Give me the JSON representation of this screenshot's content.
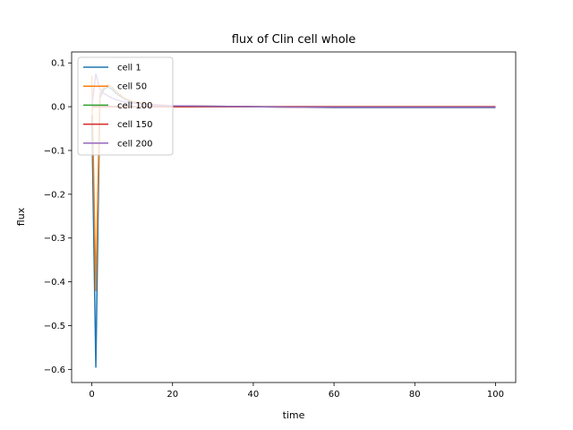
{
  "chart_data": {
    "type": "line",
    "title": "flux of Clin cell whole",
    "xlabel": "time",
    "ylabel": "flux",
    "xlim": [
      -5,
      105
    ],
    "ylim": [
      -0.63,
      0.125
    ],
    "xticks": [
      0,
      20,
      40,
      60,
      80,
      100
    ],
    "yticks": [
      0.1,
      0.0,
      -0.1,
      -0.2,
      -0.3,
      -0.4,
      -0.5,
      -0.6
    ],
    "ytick_labels": [
      "0.1",
      "0.0",
      "−0.1",
      "−0.2",
      "−0.3",
      "−0.4",
      "−0.5",
      "−0.6"
    ],
    "grid": false,
    "legend_position": "upper-left",
    "series": [
      {
        "name": "cell 1",
        "color": "#1f77b4",
        "x": [
          0,
          1,
          2,
          3,
          4,
          5,
          6,
          8,
          10,
          15,
          20,
          30,
          40,
          50,
          60,
          70,
          80,
          90,
          100
        ],
        "y": [
          -0.02,
          -0.595,
          0.02,
          0.04,
          0.045,
          0.04,
          0.03,
          0.018,
          0.01,
          0.004,
          0.002,
          0.001,
          0.0,
          -0.001,
          -0.002,
          -0.002,
          -0.002,
          -0.002,
          -0.002
        ]
      },
      {
        "name": "cell 50",
        "color": "#ff7f0e",
        "x": [
          0,
          1,
          2,
          3,
          4,
          5,
          6,
          8,
          10,
          15,
          20,
          30,
          40,
          50,
          60,
          70,
          80,
          90,
          100
        ],
        "y": [
          0.07,
          -0.42,
          0.03,
          0.045,
          0.05,
          0.045,
          0.035,
          0.02,
          0.012,
          0.005,
          0.002,
          0.001,
          0.0,
          -0.001,
          -0.001,
          -0.001,
          -0.001,
          -0.001,
          -0.001
        ]
      },
      {
        "name": "cell 100",
        "color": "#2ca02c",
        "x": [
          0,
          1,
          2,
          3,
          4,
          5,
          6,
          8,
          10,
          15,
          20,
          30,
          40,
          50,
          60,
          70,
          80,
          90,
          100
        ],
        "y": [
          0.0,
          0.0,
          0.0,
          0.0,
          0.0,
          0.0,
          0.0,
          0.0,
          0.0,
          0.0,
          0.0,
          0.0,
          0.0,
          0.0,
          0.0,
          0.0,
          0.0,
          0.0,
          0.0
        ]
      },
      {
        "name": "cell 150",
        "color": "#d62728",
        "x": [
          0,
          1,
          2,
          3,
          4,
          5,
          6,
          8,
          10,
          15,
          20,
          30,
          40,
          50,
          60,
          70,
          80,
          90,
          100
        ],
        "y": [
          0.0,
          0.0,
          0.0,
          0.0,
          0.0,
          0.0,
          0.0,
          0.0,
          0.0,
          0.0,
          0.0,
          0.0,
          0.0,
          0.0,
          0.0,
          0.0,
          0.0,
          0.0,
          0.0
        ]
      },
      {
        "name": "cell 200",
        "color": "#9467bd",
        "x": [
          0,
          1,
          2,
          3,
          4,
          5,
          6,
          8,
          10,
          15,
          20,
          30,
          40,
          50,
          60,
          70,
          80,
          90,
          100
        ],
        "y": [
          0.0,
          0.075,
          0.04,
          0.03,
          0.025,
          0.02,
          0.016,
          0.011,
          0.008,
          0.004,
          0.002,
          0.001,
          0.0,
          -0.001,
          -0.001,
          -0.001,
          -0.001,
          -0.001,
          -0.001
        ]
      }
    ]
  }
}
